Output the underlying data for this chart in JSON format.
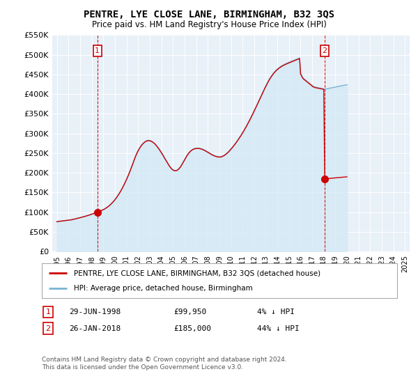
{
  "title": "PENTRE, LYE CLOSE LANE, BIRMINGHAM, B32 3QS",
  "subtitle": "Price paid vs. HM Land Registry's House Price Index (HPI)",
  "ylim": [
    0,
    550000
  ],
  "yticks": [
    0,
    50000,
    100000,
    150000,
    200000,
    250000,
    300000,
    350000,
    400000,
    450000,
    500000,
    550000
  ],
  "ytick_labels": [
    "£0",
    "£50K",
    "£100K",
    "£150K",
    "£200K",
    "£250K",
    "£300K",
    "£350K",
    "£400K",
    "£450K",
    "£500K",
    "£550K"
  ],
  "sale1_date": 1998.49,
  "sale1_price": 99950,
  "sale2_date": 2018.07,
  "sale2_price": 185000,
  "hpi_color": "#7ab3d4",
  "hpi_fill": "#d0e8f5",
  "price_color": "#cc0000",
  "dashed_color": "#cc0000",
  "plot_bg": "#e8f0f8",
  "legend_label_price": "PENTRE, LYE CLOSE LANE, BIRMINGHAM, B32 3QS (detached house)",
  "legend_label_hpi": "HPI: Average price, detached house, Birmingham",
  "footer": "Contains HM Land Registry data © Crown copyright and database right 2024.\nThis data is licensed under the Open Government Licence v3.0.",
  "hpi_monthly": [
    76000,
    76500,
    77000,
    77200,
    77500,
    77800,
    78000,
    78300,
    78600,
    78900,
    79200,
    79500,
    79800,
    80200,
    80600,
    81000,
    81500,
    82000,
    82600,
    83200,
    83800,
    84400,
    85000,
    85600,
    86200,
    86800,
    87500,
    88200,
    88900,
    89600,
    90300,
    91000,
    91800,
    92600,
    93400,
    94200,
    95000,
    95900,
    96800,
    97700,
    98600,
    99500,
    100400,
    101400,
    102400,
    103400,
    104400,
    105500,
    106700,
    108000,
    109500,
    111000,
    112700,
    114500,
    116500,
    118700,
    121000,
    123500,
    126200,
    129000,
    132000,
    135200,
    138600,
    142200,
    146000,
    150000,
    154200,
    158600,
    163200,
    168000,
    173000,
    178200,
    183600,
    189200,
    195000,
    201000,
    207200,
    213600,
    220200,
    227000,
    234000,
    240500,
    246500,
    252000,
    256800,
    261200,
    265200,
    268800,
    272000,
    274800,
    277200,
    279200,
    280800,
    281900,
    282500,
    282600,
    282300,
    281600,
    280500,
    279000,
    277200,
    275000,
    272500,
    269700,
    266600,
    263200,
    259700,
    256000,
    252200,
    248200,
    244100,
    239900,
    235600,
    231400,
    227200,
    223200,
    219300,
    215800,
    212600,
    210000,
    208000,
    206600,
    205900,
    205900,
    206700,
    208200,
    210400,
    213200,
    216600,
    220400,
    224600,
    229000,
    233500,
    237900,
    242100,
    246000,
    249500,
    252600,
    255200,
    257400,
    259100,
    260500,
    261500,
    262200,
    262600,
    262800,
    262800,
    262600,
    262200,
    261600,
    260800,
    259800,
    258700,
    257500,
    256100,
    254700,
    253200,
    251700,
    250200,
    248700,
    247300,
    246000,
    244800,
    243700,
    242800,
    242000,
    241400,
    241000,
    240800,
    241000,
    241500,
    242300,
    243400,
    244800,
    246500,
    248400,
    250500,
    252800,
    255300,
    258000,
    260800,
    263700,
    266700,
    269800,
    273000,
    276300,
    279700,
    283200,
    286800,
    290500,
    294300,
    298200,
    302200,
    306300,
    310500,
    314800,
    319200,
    323700,
    328300,
    333000,
    337800,
    342700,
    347700,
    352800,
    357900,
    363100,
    368300,
    373600,
    378900,
    384200,
    389500,
    394800,
    400100,
    405400,
    410600,
    415800,
    420800,
    425700,
    430400,
    434900,
    439200,
    443200,
    446900,
    450400,
    453600,
    456500,
    459200,
    461600,
    463900,
    466000,
    467900,
    469600,
    471200,
    472700,
    474100,
    475400,
    476600,
    477800,
    478900,
    480000,
    481000,
    482000,
    483000,
    484000,
    485000,
    486000,
    487000,
    488000,
    489000,
    490000,
    491000,
    492000,
    453000,
    448000,
    443000,
    440000,
    438000,
    436000,
    434000,
    432000,
    430000,
    428000,
    426000,
    424000,
    422000,
    420000,
    419000,
    418000,
    417500,
    417000,
    416500,
    416000,
    415500,
    415000,
    414500,
    414000,
    413500,
    413000,
    413000,
    413500,
    414000,
    414500,
    415000,
    415500,
    416000,
    416500,
    417000,
    417500,
    418000,
    418500,
    419000,
    419500,
    420000,
    420500,
    421000,
    421500,
    422000,
    422500,
    423000,
    423500,
    424000
  ],
  "start_year": 1995,
  "start_month": 1
}
